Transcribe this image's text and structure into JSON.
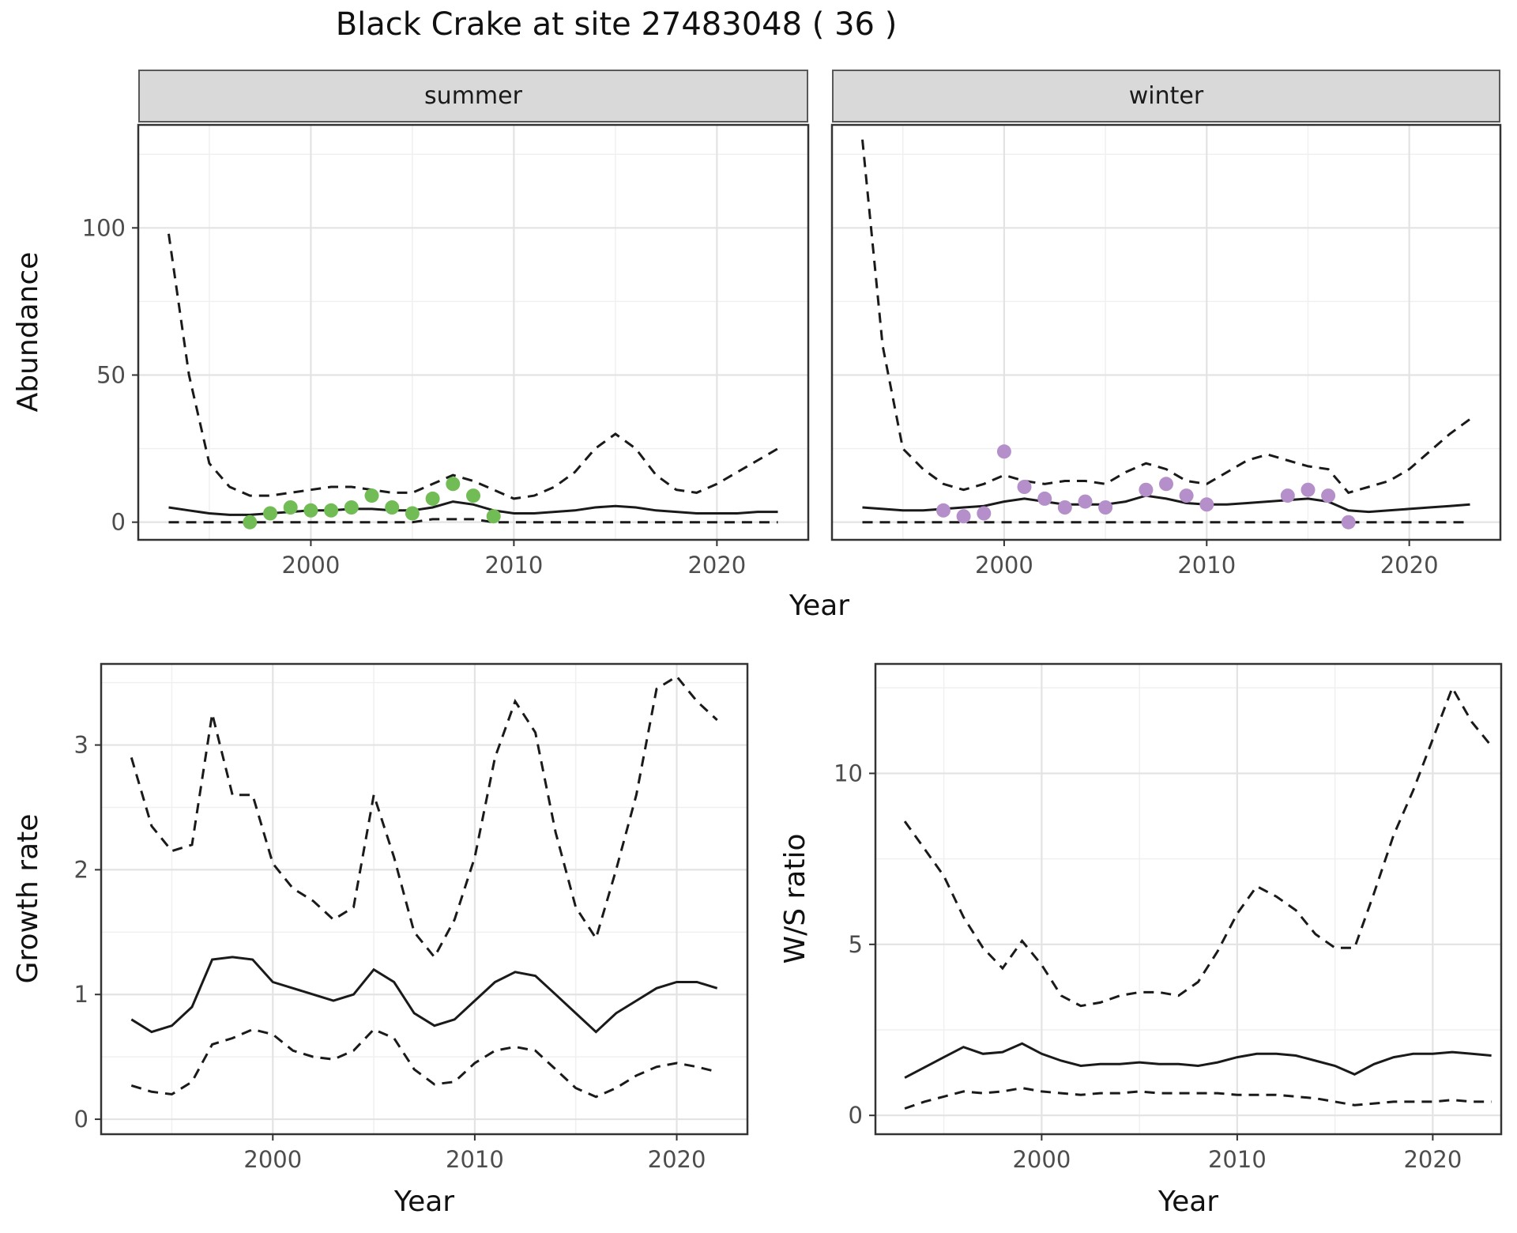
{
  "title": "Black Crake at site 27483048 ( 36 )",
  "colors": {
    "summer_point": "#72bc55",
    "winter_point": "#b58fc9",
    "line": "#1a1a1a",
    "panel_border": "#333333",
    "grid_major": "#e3e3e3",
    "grid_minor": "#f0f0f0",
    "tick_text": "#4d4d4d",
    "strip_bg": "#d9d9d9"
  },
  "chart_data": [
    {
      "id": "abundance_summer",
      "type": "line",
      "facet": "summer",
      "xlabel": "Year",
      "ylabel": "Abundance",
      "xlim": [
        1991.5,
        2024.5
      ],
      "ylim": [
        -6,
        135
      ],
      "xticks": [
        2000,
        2010,
        2020
      ],
      "yticks": [
        0,
        50,
        100
      ],
      "xminor": [
        1995,
        2005,
        2015
      ],
      "yminor": [
        25,
        75,
        125
      ],
      "x": [
        1993,
        1994,
        1995,
        1996,
        1997,
        1998,
        1999,
        2000,
        2001,
        2002,
        2003,
        2004,
        2005,
        2006,
        2007,
        2008,
        2009,
        2010,
        2011,
        2012,
        2013,
        2014,
        2015,
        2016,
        2017,
        2018,
        2019,
        2020,
        2021,
        2022,
        2023
      ],
      "series": [
        {
          "name": "upper_ci",
          "style": "dashed",
          "values": [
            98,
            50,
            20,
            12,
            9,
            9,
            10,
            11,
            12,
            12,
            11,
            10,
            10,
            13,
            16,
            14,
            11,
            8,
            9,
            12,
            17,
            25,
            30,
            25,
            16,
            11,
            10,
            13,
            17,
            21,
            25
          ]
        },
        {
          "name": "median",
          "style": "solid",
          "values": [
            5,
            4,
            3,
            2.5,
            2.5,
            3,
            3.5,
            4,
            4,
            4.5,
            4.5,
            4,
            4,
            5,
            7,
            6,
            4,
            3,
            3,
            3.5,
            4,
            5,
            5.5,
            5,
            4,
            3.5,
            3,
            3,
            3,
            3.5,
            3.5
          ]
        },
        {
          "name": "lower_ci",
          "style": "dashed",
          "values": [
            0,
            0,
            0,
            0,
            0,
            0,
            0,
            0,
            0,
            0,
            0,
            0,
            0,
            1,
            1,
            1,
            0,
            0,
            0,
            0,
            0,
            0,
            0,
            0,
            0,
            0,
            0,
            0,
            0,
            0,
            0
          ]
        }
      ],
      "points": {
        "name": "observed_counts",
        "color_key": "summer_point",
        "x": [
          1997,
          1998,
          1999,
          2000,
          2001,
          2002,
          2003,
          2004,
          2005,
          2006,
          2007,
          2008,
          2009
        ],
        "y": [
          0,
          3,
          5,
          4,
          4,
          5,
          9,
          5,
          3,
          8,
          13,
          9,
          2
        ]
      }
    },
    {
      "id": "abundance_winter",
      "type": "line",
      "facet": "winter",
      "xlabel": "Year",
      "ylabel": "Abundance",
      "xlim": [
        1991.5,
        2024.5
      ],
      "ylim": [
        -6,
        135
      ],
      "xticks": [
        2000,
        2010,
        2020
      ],
      "yticks": [
        0,
        50,
        100
      ],
      "xminor": [
        1995,
        2005,
        2015
      ],
      "yminor": [
        25,
        75,
        125
      ],
      "x": [
        1993,
        1994,
        1995,
        1996,
        1997,
        1998,
        1999,
        2000,
        2001,
        2002,
        2003,
        2004,
        2005,
        2006,
        2007,
        2008,
        2009,
        2010,
        2011,
        2012,
        2013,
        2014,
        2015,
        2016,
        2017,
        2018,
        2019,
        2020,
        2021,
        2022,
        2023
      ],
      "series": [
        {
          "name": "upper_ci",
          "style": "dashed",
          "values": [
            130,
            60,
            25,
            18,
            13,
            11,
            13,
            16,
            14,
            13,
            14,
            14,
            13,
            17,
            20,
            18,
            14,
            13,
            17,
            21,
            23,
            21,
            19,
            18,
            10,
            12,
            14,
            18,
            24,
            30,
            35
          ]
        },
        {
          "name": "median",
          "style": "solid",
          "values": [
            5,
            4.5,
            4,
            4,
            4.5,
            5,
            5.5,
            7,
            8,
            7,
            6,
            6,
            6,
            7,
            9,
            8,
            6.5,
            6,
            6,
            6.5,
            7,
            7.5,
            8,
            7,
            4,
            3.5,
            4,
            4.5,
            5,
            5.5,
            6
          ]
        },
        {
          "name": "lower_ci",
          "style": "dashed",
          "values": [
            0,
            0,
            0,
            0,
            0,
            0,
            0,
            0,
            0,
            0,
            0,
            0,
            0,
            0,
            0,
            0,
            0,
            0,
            0,
            0,
            0,
            0,
            0,
            0,
            0,
            0,
            0,
            0,
            0,
            0,
            0
          ]
        }
      ],
      "points": {
        "name": "observed_counts",
        "color_key": "winter_point",
        "x": [
          1997,
          1998,
          1999,
          2000,
          2001,
          2002,
          2003,
          2004,
          2005,
          2007,
          2008,
          2009,
          2010,
          2014,
          2015,
          2016,
          2017
        ],
        "y": [
          4,
          2,
          3,
          24,
          12,
          8,
          5,
          7,
          5,
          11,
          13,
          9,
          6,
          9,
          11,
          9,
          0
        ]
      }
    },
    {
      "id": "growth_rate",
      "type": "line",
      "xlabel": "Year",
      "ylabel": "Growth rate",
      "xlim": [
        1991.5,
        2023.5
      ],
      "ylim": [
        -0.12,
        3.65
      ],
      "xticks": [
        2000,
        2010,
        2020
      ],
      "yticks": [
        0,
        1,
        2,
        3
      ],
      "xminor": [
        1995,
        2005,
        2015
      ],
      "yminor": [
        0.5,
        1.5,
        2.5,
        3.5
      ],
      "x": [
        1993,
        1994,
        1995,
        1996,
        1997,
        1998,
        1999,
        2000,
        2001,
        2002,
        2003,
        2004,
        2005,
        2006,
        2007,
        2008,
        2009,
        2010,
        2011,
        2012,
        2013,
        2014,
        2015,
        2016,
        2017,
        2018,
        2019,
        2020,
        2021,
        2022
      ],
      "series": [
        {
          "name": "upper_ci",
          "style": "dashed",
          "values": [
            2.9,
            2.35,
            2.15,
            2.2,
            3.25,
            2.6,
            2.6,
            2.05,
            1.85,
            1.75,
            1.6,
            1.7,
            2.6,
            2.1,
            1.5,
            1.3,
            1.6,
            2.1,
            2.9,
            3.35,
            3.1,
            2.3,
            1.7,
            1.45,
            2.0,
            2.6,
            3.45,
            3.55,
            3.35,
            3.2
          ]
        },
        {
          "name": "median",
          "style": "solid",
          "values": [
            0.8,
            0.7,
            0.75,
            0.9,
            1.28,
            1.3,
            1.28,
            1.1,
            1.05,
            1.0,
            0.95,
            1.0,
            1.2,
            1.1,
            0.85,
            0.75,
            0.8,
            0.95,
            1.1,
            1.18,
            1.15,
            1.0,
            0.85,
            0.7,
            0.85,
            0.95,
            1.05,
            1.1,
            1.1,
            1.05
          ]
        },
        {
          "name": "lower_ci",
          "style": "dashed",
          "values": [
            0.27,
            0.22,
            0.2,
            0.3,
            0.6,
            0.65,
            0.72,
            0.68,
            0.55,
            0.5,
            0.48,
            0.55,
            0.72,
            0.65,
            0.4,
            0.28,
            0.3,
            0.45,
            0.55,
            0.58,
            0.55,
            0.4,
            0.25,
            0.18,
            0.25,
            0.35,
            0.42,
            0.45,
            0.42,
            0.38
          ]
        }
      ]
    },
    {
      "id": "ws_ratio",
      "type": "line",
      "xlabel": "Year",
      "ylabel": "W/S ratio",
      "xlim": [
        1991.5,
        2023.5
      ],
      "ylim": [
        -0.55,
        13.2
      ],
      "xticks": [
        2000,
        2010,
        2020
      ],
      "yticks": [
        0,
        5,
        10
      ],
      "xminor": [
        1995,
        2005,
        2015
      ],
      "yminor": [
        2.5,
        7.5,
        12.5
      ],
      "x": [
        1993,
        1994,
        1995,
        1996,
        1997,
        1998,
        1999,
        2000,
        2001,
        2002,
        2003,
        2004,
        2005,
        2006,
        2007,
        2008,
        2009,
        2010,
        2011,
        2012,
        2013,
        2014,
        2015,
        2016,
        2017,
        2018,
        2019,
        2020,
        2021,
        2022,
        2023
      ],
      "series": [
        {
          "name": "upper_ci",
          "style": "dashed",
          "values": [
            8.6,
            7.8,
            7.0,
            5.8,
            4.9,
            4.3,
            5.1,
            4.4,
            3.5,
            3.2,
            3.3,
            3.5,
            3.6,
            3.6,
            3.5,
            3.9,
            4.8,
            5.9,
            6.7,
            6.4,
            6.0,
            5.3,
            4.9,
            4.9,
            6.5,
            8.2,
            9.5,
            11.0,
            12.5,
            11.5,
            10.8
          ]
        },
        {
          "name": "median",
          "style": "solid",
          "values": [
            1.1,
            1.4,
            1.7,
            2.0,
            1.8,
            1.85,
            2.1,
            1.8,
            1.6,
            1.45,
            1.5,
            1.5,
            1.55,
            1.5,
            1.5,
            1.45,
            1.55,
            1.7,
            1.8,
            1.8,
            1.75,
            1.6,
            1.45,
            1.2,
            1.5,
            1.7,
            1.8,
            1.8,
            1.85,
            1.8,
            1.75
          ]
        },
        {
          "name": "lower_ci",
          "style": "dashed",
          "values": [
            0.2,
            0.4,
            0.55,
            0.7,
            0.65,
            0.7,
            0.8,
            0.7,
            0.65,
            0.6,
            0.65,
            0.65,
            0.7,
            0.65,
            0.65,
            0.65,
            0.65,
            0.6,
            0.6,
            0.6,
            0.55,
            0.5,
            0.4,
            0.3,
            0.35,
            0.4,
            0.4,
            0.4,
            0.45,
            0.4,
            0.4
          ]
        }
      ]
    }
  ]
}
